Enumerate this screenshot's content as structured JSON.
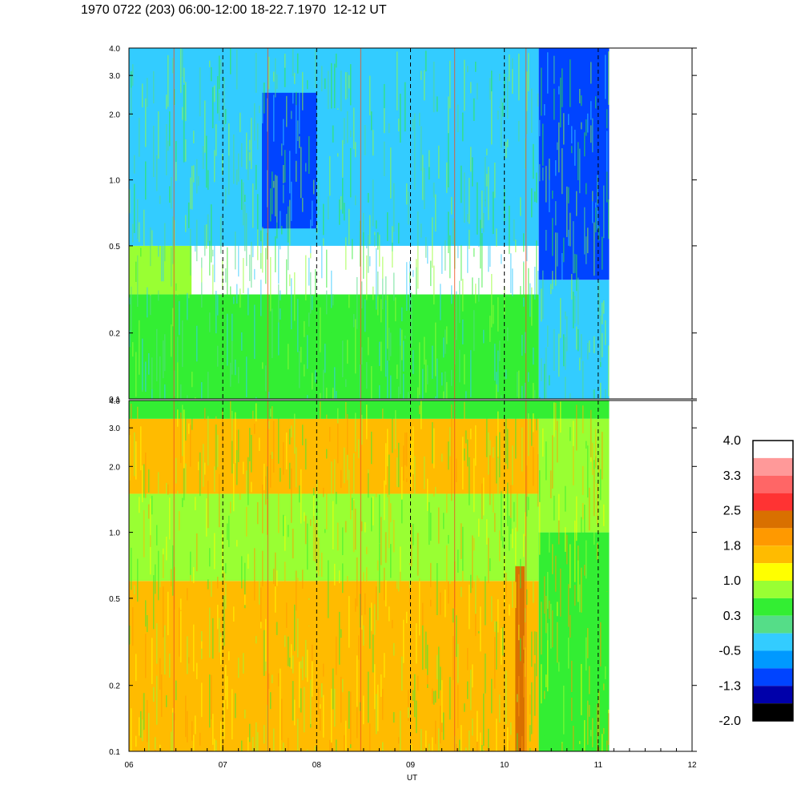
{
  "title": "1970 0722 (203) 06:00-12:00 18-22.7.1970  12-12 UT",
  "chart_data": [
    {
      "type": "heatmap",
      "panel": "upper",
      "x_range": [
        "06",
        "12"
      ],
      "x_data_end": "11:07",
      "y_scale": "log",
      "y_range": [
        0.1,
        4.0
      ],
      "y_ticks": [
        "0.1",
        "0.2",
        "0.5",
        "1.0",
        "2.0",
        "3.0",
        "4.0"
      ],
      "regions": [
        {
          "x": [
            "06:00",
            "06:40"
          ],
          "y": [
            0.3,
            0.5
          ],
          "level": 1.0
        },
        {
          "x": [
            "06:00",
            "10:22"
          ],
          "y": [
            0.1,
            0.3
          ],
          "level": 0.3
        },
        {
          "x": [
            "06:00",
            "10:22"
          ],
          "y": [
            0.5,
            4.0
          ],
          "level": -0.5
        },
        {
          "x": [
            "07:25",
            "08:00"
          ],
          "y": [
            0.6,
            2.5
          ],
          "level": -1.3
        },
        {
          "x": [
            "10:22",
            "11:07"
          ],
          "y": [
            0.1,
            0.35
          ],
          "level": -0.5
        },
        {
          "x": [
            "10:22",
            "11:07"
          ],
          "y": [
            0.35,
            4.0
          ],
          "level": -1.3
        }
      ]
    },
    {
      "type": "heatmap",
      "panel": "lower",
      "x_range": [
        "06",
        "12"
      ],
      "x_data_end": "11:07",
      "y_scale": "log",
      "y_range": [
        0.1,
        4.0
      ],
      "y_ticks": [
        "0.1",
        "0.2",
        "0.5",
        "1.0",
        "2.0",
        "3.0",
        "4.0"
      ],
      "xlabel": "UT",
      "x_ticks": [
        "06",
        "07",
        "08",
        "09",
        "10",
        "11",
        "12"
      ],
      "regions": [
        {
          "x": [
            "06:00",
            "10:22"
          ],
          "y": [
            0.1,
            0.6
          ],
          "level": 1.8
        },
        {
          "x": [
            "06:00",
            "10:22"
          ],
          "y": [
            0.6,
            1.5
          ],
          "level": 1.0
        },
        {
          "x": [
            "06:00",
            "10:22"
          ],
          "y": [
            1.5,
            3.3
          ],
          "level": 1.8
        },
        {
          "x": [
            "06:00",
            "11:07"
          ],
          "y": [
            3.3,
            4.0
          ],
          "level": 0.3
        },
        {
          "x": [
            "10:07",
            "10:13"
          ],
          "y": [
            0.1,
            0.7
          ],
          "level": 2.5
        },
        {
          "x": [
            "10:22",
            "11:07"
          ],
          "y": [
            0.1,
            1.0
          ],
          "level": 0.3
        },
        {
          "x": [
            "10:22",
            "11:07"
          ],
          "y": [
            1.0,
            3.3
          ],
          "level": 1.0
        }
      ]
    }
  ],
  "colorbar": {
    "labels": [
      "4.0",
      "3.3",
      "2.5",
      "1.8",
      "1.0",
      "0.3",
      "-0.5",
      "-1.3",
      "-2.0"
    ],
    "colors": [
      "#ffffff",
      "#ff9999",
      "#ff6666",
      "#ff3333",
      "#d97000",
      "#ff9900",
      "#ffbb00",
      "#ffff00",
      "#99ff33",
      "#33ee33",
      "#55dd88",
      "#33ccff",
      "#0099ff",
      "#0044ff",
      "#0000aa",
      "#000000"
    ]
  }
}
